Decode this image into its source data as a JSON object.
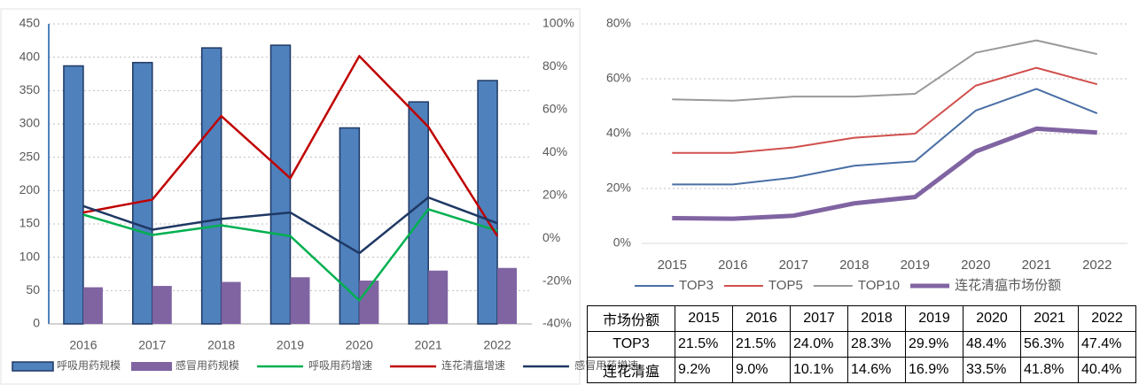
{
  "chart_data": [
    {
      "type": "bar",
      "categories": [
        "2016",
        "2017",
        "2018",
        "2019",
        "2020",
        "2021",
        "2022"
      ],
      "series": [
        {
          "name": "呼吸用药规模",
          "type": "bar",
          "color": "#4f81bd",
          "values": [
            387,
            392,
            414,
            418,
            294,
            333,
            365
          ]
        },
        {
          "name": "感冒用药规模",
          "type": "bar",
          "color": "#8064a2",
          "values": [
            55,
            57,
            63,
            70,
            65,
            80,
            84
          ]
        },
        {
          "name": "呼吸用药增速",
          "type": "line",
          "axis": "y2",
          "color": "#00b050",
          "values": [
            11,
            1.5,
            6,
            1,
            -29,
            13.5,
            3.5
          ]
        },
        {
          "name": "连花清瘟增速",
          "type": "line",
          "axis": "y2",
          "color": "#c00000",
          "values": [
            12,
            18,
            57,
            28,
            85,
            52,
            1
          ]
        },
        {
          "name": "感冒用药增速",
          "type": "line",
          "axis": "y2",
          "color": "#1f3864",
          "values": [
            15,
            4,
            9,
            12,
            -7,
            19,
            7
          ]
        }
      ],
      "ylim": [
        0,
        450
      ],
      "yticks": [
        0,
        50,
        100,
        150,
        200,
        250,
        300,
        350,
        400,
        450
      ],
      "y2lim": [
        -40,
        100
      ],
      "y2ticks": [
        {
          "value": -40,
          "label": "-40%"
        },
        {
          "value": -20,
          "label": "-20%"
        },
        {
          "value": 0,
          "label": "0%"
        },
        {
          "value": 20,
          "label": "20%"
        },
        {
          "value": 40,
          "label": "40%"
        },
        {
          "value": 60,
          "label": "60%"
        },
        {
          "value": 80,
          "label": "80%"
        },
        {
          "value": 100,
          "label": "100%"
        }
      ],
      "grid": true,
      "legend": "bottom"
    },
    {
      "type": "line",
      "categories": [
        "2015",
        "2016",
        "2017",
        "2018",
        "2019",
        "2020",
        "2021",
        "2022"
      ],
      "series": [
        {
          "name": "TOP3",
          "color": "#4a6fa5",
          "width": 2,
          "values": [
            21.5,
            21.5,
            24.0,
            28.3,
            29.9,
            48.4,
            56.3,
            47.4
          ]
        },
        {
          "name": "TOP5",
          "color": "#d0504d",
          "width": 2,
          "values": [
            33,
            33,
            35,
            38.5,
            40,
            57.5,
            64,
            58
          ]
        },
        {
          "name": "TOP10",
          "color": "#999999",
          "width": 2,
          "values": [
            52.5,
            52,
            53.5,
            53.5,
            54.5,
            69.5,
            74,
            69
          ]
        },
        {
          "name": "连花清瘟市场份额",
          "color": "#8064a2",
          "width": 5,
          "values": [
            9.2,
            9.0,
            10.1,
            14.6,
            16.9,
            33.5,
            41.8,
            40.4
          ]
        }
      ],
      "ylim": [
        0,
        80
      ],
      "yticks": [
        {
          "value": 0,
          "label": "0%"
        },
        {
          "value": 20,
          "label": "20%"
        },
        {
          "value": 40,
          "label": "40%"
        },
        {
          "value": 60,
          "label": "60%"
        },
        {
          "value": 80,
          "label": "80%"
        }
      ],
      "grid": true,
      "legend": "bottom"
    }
  ],
  "table": {
    "header": [
      "市场份额",
      "2015",
      "2016",
      "2017",
      "2018",
      "2019",
      "2020",
      "2021",
      "2022"
    ],
    "rows": [
      [
        "TOP3",
        "21.5%",
        "21.5%",
        "24.0%",
        "28.3%",
        "29.9%",
        "48.4%",
        "56.3%",
        "47.4%"
      ],
      [
        "连花清瘟",
        "9.2%",
        "9.0%",
        "10.1%",
        "14.6%",
        "16.9%",
        "33.5%",
        "41.8%",
        "40.4%"
      ]
    ]
  }
}
